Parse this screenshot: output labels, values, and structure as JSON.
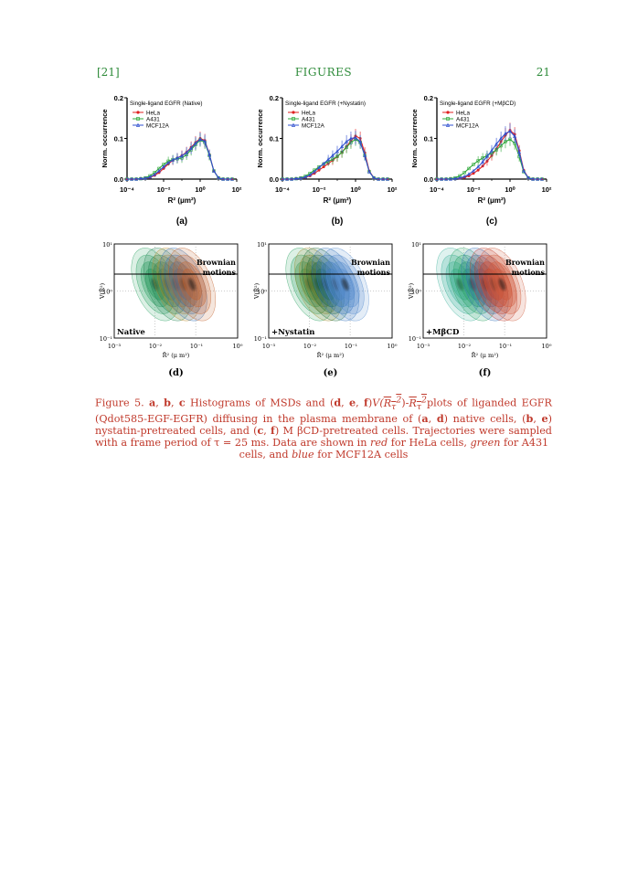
{
  "header": {
    "left": "[21]",
    "center": "FIGURES",
    "right": "21"
  },
  "histograms": [
    {
      "title": "Single-ligand EGFR (Native)",
      "label": "(a)"
    },
    {
      "title": "Single-ligand EGFR (+Nystatin)",
      "label": "(b)"
    },
    {
      "title": "Single-ligand EGFR (+MβCD)",
      "label": "(c)"
    }
  ],
  "hist_axes": {
    "ylabel": "Norm. occurrence",
    "xlabel": "R² (μm²)",
    "yticks": [
      "0.0",
      "0.1",
      "0.2"
    ],
    "xticks": [
      "10⁻⁴",
      "10⁻²",
      "10⁰",
      "10²"
    ]
  },
  "legend": [
    "HeLa",
    "A431",
    "MCF12A"
  ],
  "colors": {
    "HeLa": "#e02020",
    "A431": "#2fa83a",
    "MCF12A": "#3050d0",
    "header": "#2e8b3a",
    "caption": "#c0392b"
  },
  "contours": [
    {
      "condition": "Native",
      "label": "(d)"
    },
    {
      "condition": "+Nystatin",
      "label": "(e)"
    },
    {
      "condition": "+MβCD",
      "label": "(f)"
    }
  ],
  "contour_axes": {
    "ylabel": "V(R̄²)",
    "xlabel": "R̄² (μ m²)",
    "yticks": [
      "10⁻¹",
      "10⁰",
      "10¹"
    ],
    "xticks": [
      "10⁻³",
      "10⁻²",
      "10⁻¹",
      "10⁰"
    ],
    "annotation": "Brownian motions"
  },
  "chart_data": [
    {
      "type": "line",
      "title": "Single-ligand EGFR (Native)",
      "xlabel": "R² (μm²)",
      "ylabel": "Norm. occurrence",
      "xscale": "log",
      "xlim": [
        0.0001,
        100
      ],
      "ylim": [
        0,
        0.2
      ],
      "x": [
        0.0001,
        0.00018,
        0.00032,
        0.00056,
        0.001,
        0.0018,
        0.0032,
        0.0056,
        0.01,
        0.018,
        0.032,
        0.056,
        0.1,
        0.18,
        0.32,
        0.56,
        1,
        1.8,
        3.2,
        5.6,
        10,
        18,
        32,
        56
      ],
      "series": [
        {
          "name": "HeLa",
          "values": [
            0,
            0,
            0,
            0.001,
            0.002,
            0.004,
            0.009,
            0.016,
            0.026,
            0.037,
            0.046,
            0.052,
            0.058,
            0.066,
            0.078,
            0.09,
            0.1,
            0.095,
            0.06,
            0.02,
            0.003,
            0,
            0,
            0
          ]
        },
        {
          "name": "A431",
          "values": [
            0,
            0,
            0,
            0.001,
            0.003,
            0.008,
            0.016,
            0.026,
            0.036,
            0.044,
            0.048,
            0.05,
            0.052,
            0.06,
            0.072,
            0.085,
            0.096,
            0.09,
            0.058,
            0.02,
            0.003,
            0,
            0,
            0
          ]
        },
        {
          "name": "MCF12A",
          "values": [
            0,
            0,
            0,
            0.001,
            0.002,
            0.005,
            0.011,
            0.02,
            0.03,
            0.04,
            0.047,
            0.052,
            0.057,
            0.065,
            0.076,
            0.088,
            0.098,
            0.093,
            0.06,
            0.02,
            0.003,
            0,
            0,
            0
          ]
        }
      ]
    },
    {
      "type": "line",
      "title": "Single-ligand EGFR (+Nystatin)",
      "xlabel": "R² (μm²)",
      "ylabel": "Norm. occurrence",
      "xscale": "log",
      "xlim": [
        0.0001,
        100
      ],
      "ylim": [
        0,
        0.2
      ],
      "x": [
        0.0001,
        0.00018,
        0.00032,
        0.00056,
        0.001,
        0.0018,
        0.0032,
        0.0056,
        0.01,
        0.018,
        0.032,
        0.056,
        0.1,
        0.18,
        0.32,
        0.56,
        1,
        1.8,
        3.2,
        5.6,
        10,
        18,
        32,
        56
      ],
      "series": [
        {
          "name": "HeLa",
          "values": [
            0,
            0,
            0,
            0.001,
            0.002,
            0.004,
            0.008,
            0.014,
            0.022,
            0.03,
            0.038,
            0.046,
            0.055,
            0.066,
            0.08,
            0.094,
            0.106,
            0.1,
            0.065,
            0.02,
            0.003,
            0,
            0,
            0
          ]
        },
        {
          "name": "A431",
          "values": [
            0,
            0,
            0,
            0.001,
            0.003,
            0.007,
            0.014,
            0.022,
            0.03,
            0.037,
            0.043,
            0.049,
            0.056,
            0.066,
            0.078,
            0.09,
            0.098,
            0.09,
            0.058,
            0.018,
            0.003,
            0,
            0,
            0
          ]
        },
        {
          "name": "MCF12A",
          "values": [
            0,
            0,
            0,
            0.001,
            0.002,
            0.005,
            0.01,
            0.018,
            0.028,
            0.038,
            0.048,
            0.058,
            0.068,
            0.08,
            0.092,
            0.1,
            0.102,
            0.092,
            0.058,
            0.018,
            0.003,
            0,
            0,
            0
          ]
        }
      ]
    },
    {
      "type": "line",
      "title": "Single-ligand EGFR (+MβCD)",
      "xlabel": "R² (μm²)",
      "ylabel": "Norm. occurrence",
      "xscale": "log",
      "xlim": [
        0.0001,
        100
      ],
      "ylim": [
        0,
        0.2
      ],
      "x": [
        0.0001,
        0.00018,
        0.00032,
        0.00056,
        0.001,
        0.0018,
        0.0032,
        0.0056,
        0.01,
        0.018,
        0.032,
        0.056,
        0.1,
        0.18,
        0.32,
        0.56,
        1,
        1.8,
        3.2,
        5.6,
        10,
        18,
        32,
        56
      ],
      "series": [
        {
          "name": "HeLa",
          "values": [
            0,
            0,
            0,
            0,
            0.001,
            0.002,
            0.004,
            0.008,
            0.014,
            0.022,
            0.032,
            0.044,
            0.058,
            0.074,
            0.092,
            0.108,
            0.12,
            0.11,
            0.07,
            0.022,
            0.003,
            0,
            0,
            0
          ]
        },
        {
          "name": "A431",
          "values": [
            0,
            0,
            0,
            0.001,
            0.003,
            0.008,
            0.016,
            0.026,
            0.036,
            0.045,
            0.052,
            0.058,
            0.064,
            0.072,
            0.082,
            0.092,
            0.098,
            0.088,
            0.055,
            0.018,
            0.003,
            0,
            0,
            0
          ]
        },
        {
          "name": "MCF12A",
          "values": [
            0,
            0,
            0,
            0,
            0.001,
            0.003,
            0.006,
            0.012,
            0.02,
            0.03,
            0.042,
            0.056,
            0.07,
            0.086,
            0.1,
            0.112,
            0.118,
            0.105,
            0.066,
            0.02,
            0.003,
            0,
            0,
            0
          ]
        }
      ]
    }
  ],
  "caption": {
    "fig": "Figure 5.",
    "a": "a",
    "b": "b",
    "c": "c",
    "d": "d",
    "e": "e",
    "f": "f",
    "t1": " Histograms of MSDs and (",
    "t2": ")",
    "vterm": "V(",
    "rterm": "R",
    "t3": "plots of liganded EGFR (Qdot585-EGF-EGFR) diffusing in the plasma membrane of (",
    "t4": ") native cells, (",
    "t5": ") nystatin-pretreated cells, and (",
    "t6": ") M βCD-pretreated cells. Trajectories were sampled with a frame period of τ = 25 ms. Data are shown in ",
    "red": "red",
    "t7": " for HeLa cells, ",
    "green": "green",
    "t8": " for A431",
    "t9": "cells, and ",
    "blue": "blue",
    "t10": " for MCF12A cells"
  }
}
